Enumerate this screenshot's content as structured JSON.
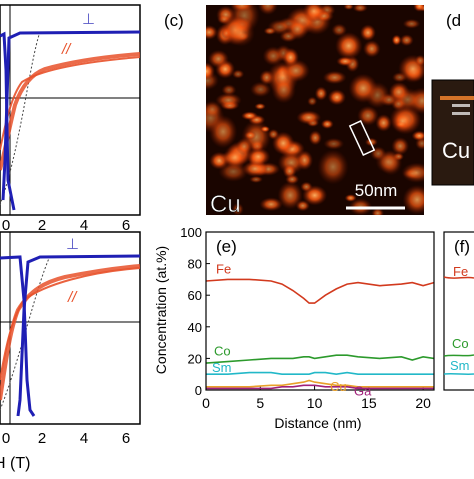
{
  "panels": {
    "c": "(c)",
    "d": "(d",
    "e": "(e)",
    "f": "(f)"
  },
  "micrograph": {
    "element": "Cu",
    "scale_label": "50nm",
    "inset_element": "Cu"
  },
  "hysteresis": {
    "label_perp": "⊥",
    "label_par": "//",
    "x_ticks": [
      "0",
      "2",
      "4",
      "6"
    ],
    "xlabel": "H (T)",
    "xlabel_visible": "H (T)",
    "colors": {
      "perp": "#1f1fb4",
      "par": "#e8512a"
    }
  },
  "chart_data": [
    {
      "type": "line",
      "panel": "e",
      "xlabel": "Distance (nm)",
      "ylabel": "Concentration (at.%)",
      "xlim": [
        0,
        21
      ],
      "ylim": [
        0,
        100
      ],
      "x_ticks": [
        0,
        5,
        10,
        15,
        20
      ],
      "y_ticks": [
        0,
        20,
        40,
        60,
        80,
        100
      ],
      "grid": false,
      "x": [
        0,
        2,
        4,
        6,
        7,
        8,
        9,
        9.5,
        10,
        11,
        12,
        13,
        14,
        16,
        18,
        19,
        20,
        21
      ],
      "series": [
        {
          "name": "Fe",
          "color": "#d23a1e",
          "values": [
            69,
            70,
            70,
            69,
            67,
            63,
            58,
            55,
            55,
            60,
            64,
            67,
            68,
            66,
            67,
            68,
            66,
            68
          ]
        },
        {
          "name": "Co",
          "color": "#2c9a2c",
          "values": [
            17,
            18,
            19,
            20,
            20,
            20,
            21,
            21,
            20,
            21,
            22,
            22,
            21,
            20,
            21,
            19,
            21,
            20
          ]
        },
        {
          "name": "Sm",
          "color": "#22b8c8",
          "values": [
            10,
            10,
            11,
            11,
            10,
            10,
            10,
            10,
            11,
            11,
            10,
            11,
            10,
            10,
            10,
            10,
            10,
            10
          ]
        },
        {
          "name": "Cu",
          "color": "#e8a02a",
          "values": [
            2,
            2,
            2,
            3,
            3,
            4,
            5,
            6,
            5,
            4,
            3,
            3,
            2,
            2,
            2,
            2,
            2,
            2
          ]
        },
        {
          "name": "Ga",
          "color": "#a0207a",
          "values": [
            1,
            1,
            1,
            1,
            2,
            2,
            3,
            3,
            3,
            2,
            2,
            2,
            1,
            1,
            1,
            1,
            1,
            1
          ]
        }
      ]
    }
  ],
  "panel_f_labels": [
    "Fe",
    "Co",
    "Sm"
  ]
}
